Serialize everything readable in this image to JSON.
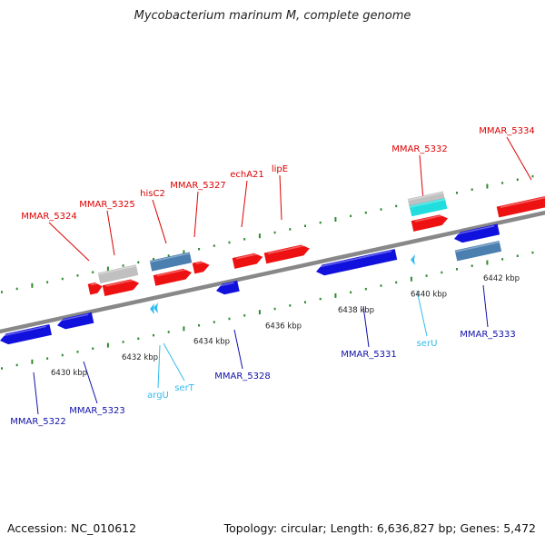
{
  "title": "Mycobacterium marinum M, complete genome",
  "footer": {
    "accession": "Accession: NC_010612",
    "summary": "Topology: circular; Length: 6,636,827 bp; Genes: 5,472"
  },
  "colors": {
    "backbone": "#888888",
    "dots": "#2e8b2e",
    "forward_cds": "#ee1111",
    "reverse_cds": "#1111dd",
    "trna": "#33bbee",
    "pseudo_forward": "#c0c0c0",
    "pseudo_reverse": "#4a7fb0",
    "rrna": "#22dddd",
    "forward_label": "#dd0000",
    "reverse_label": "#1010aa"
  },
  "scale_ticks": [
    "6430 kbp",
    "6432 kbp",
    "6434 kbp",
    "6436 kbp",
    "6438 kbp",
    "6440 kbp",
    "6442 kbp"
  ],
  "forward_labels": [
    "MMAR_5324",
    "MMAR_5325",
    "hisC2",
    "MMAR_5327",
    "echA21",
    "lipE",
    "MMAR_5332",
    "MMAR_5334"
  ],
  "reverse_labels": [
    "MMAR_5322",
    "MMAR_5323",
    "MMAR_5328",
    "MMAR_5331",
    "MMAR_5333"
  ],
  "trna_labels": [
    "argU",
    "serT",
    "serU"
  ]
}
